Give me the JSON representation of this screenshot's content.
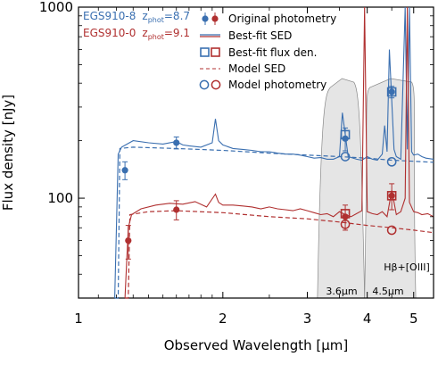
{
  "chart_data": {
    "type": "line",
    "xlabel": "Observed Wavelength [μm]",
    "ylabel": "Flux density [nJy]",
    "xscale": "log",
    "yscale": "log",
    "xlim": [
      1.0,
      5.5
    ],
    "ylim": [
      30,
      1000
    ],
    "xticks": [
      {
        "value": 1,
        "label": "1"
      },
      {
        "value": 2,
        "label": "2"
      },
      {
        "value": 3,
        "label": "3"
      },
      {
        "value": 4,
        "label": "4"
      },
      {
        "value": 5,
        "label": "5"
      }
    ],
    "yticks": [
      {
        "value": 100,
        "label": "100"
      },
      {
        "value": 1000,
        "label": "1000"
      }
    ],
    "galaxies": [
      {
        "name": "EGS910-8",
        "z_prefix": "z",
        "z_sub": "phot",
        "z_value": "=8.7",
        "color": "#3a6fb0"
      },
      {
        "name": "EGS910-0",
        "z_prefix": "z",
        "z_sub": "phot",
        "z_value": "=9.1",
        "color": "#b03030"
      }
    ],
    "legend": {
      "position": "upper-right",
      "entries": [
        {
          "key": "original",
          "label": "Original photometry"
        },
        {
          "key": "sed",
          "label": "Best-fit SED"
        },
        {
          "key": "flux",
          "label": "Best-fit flux den."
        },
        {
          "key": "model_sed",
          "label": "Model SED"
        },
        {
          "key": "model_phot",
          "label": "Model photometry"
        }
      ]
    },
    "band_labels": [
      {
        "label": "3.6μm",
        "x": 3.6
      },
      {
        "label": "4.5μm",
        "x": 4.5
      },
      {
        "label": "Hβ+[OIII]",
        "x": 4.9
      }
    ],
    "original_photometry": [
      {
        "galaxy": 0,
        "x": 1.25,
        "y": 140,
        "err": 15
      },
      {
        "galaxy": 0,
        "x": 1.6,
        "y": 195,
        "err": 14
      },
      {
        "galaxy": 0,
        "x": 3.6,
        "y": 205,
        "err": 28
      },
      {
        "galaxy": 0,
        "x": 4.5,
        "y": 360,
        "err": 25
      },
      {
        "galaxy": 1,
        "x": 1.27,
        "y": 60,
        "err": 12
      },
      {
        "galaxy": 1,
        "x": 1.6,
        "y": 87,
        "err": 10
      },
      {
        "galaxy": 1,
        "x": 3.6,
        "y": 80,
        "err": 12
      },
      {
        "galaxy": 1,
        "x": 4.5,
        "y": 103,
        "err": 16
      }
    ],
    "bestfit_flux": [
      {
        "galaxy": 0,
        "x": 3.6,
        "y": 215
      },
      {
        "galaxy": 0,
        "x": 4.5,
        "y": 360
      },
      {
        "galaxy": 1,
        "x": 3.6,
        "y": 83
      },
      {
        "galaxy": 1,
        "x": 4.5,
        "y": 103
      }
    ],
    "model_photometry": [
      {
        "galaxy": 0,
        "x": 3.6,
        "y": 165
      },
      {
        "galaxy": 0,
        "x": 4.5,
        "y": 155
      },
      {
        "galaxy": 1,
        "x": 3.6,
        "y": 73
      },
      {
        "galaxy": 1,
        "x": 4.5,
        "y": 68
      }
    ],
    "series": [
      {
        "galaxy": 0,
        "kind": "bestfit_sed",
        "x": [
          1.19,
          1.21,
          1.23,
          1.3,
          1.4,
          1.5,
          1.6,
          1.65,
          1.7,
          1.8,
          1.9,
          1.93,
          1.96,
          2.0,
          2.1,
          2.2,
          2.3,
          2.4,
          2.5,
          2.6,
          2.7,
          2.8,
          2.9,
          3.0,
          3.1,
          3.2,
          3.3,
          3.4,
          3.5,
          3.55,
          3.65,
          3.8,
          3.9,
          4.0,
          4.1,
          4.2,
          4.3,
          4.35,
          4.4,
          4.45,
          4.55,
          4.6,
          4.7,
          4.8,
          4.85,
          4.9,
          4.95,
          5.0,
          5.1,
          5.2,
          5.3,
          5.5
        ],
        "y": [
          30,
          170,
          185,
          200,
          195,
          192,
          198,
          190,
          188,
          185,
          195,
          260,
          200,
          190,
          182,
          180,
          178,
          175,
          175,
          172,
          170,
          170,
          168,
          165,
          162,
          163,
          160,
          160,
          165,
          280,
          165,
          160,
          158,
          165,
          160,
          158,
          170,
          240,
          175,
          600,
          180,
          165,
          160,
          1000,
          180,
          1000,
          175,
          168,
          170,
          165,
          162,
          160
        ]
      },
      {
        "galaxy": 0,
        "kind": "model_sed",
        "x": [
          1.19,
          1.21,
          1.22,
          1.3,
          1.6,
          2.0,
          2.5,
          3.0,
          3.5,
          4.0,
          4.5,
          5.0,
          5.5
        ],
        "y": [
          30,
          30,
          182,
          185,
          182,
          178,
          172,
          168,
          165,
          162,
          158,
          156,
          154
        ]
      },
      {
        "galaxy": 1,
        "kind": "bestfit_sed",
        "x": [
          1.25,
          1.27,
          1.29,
          1.35,
          1.45,
          1.55,
          1.65,
          1.75,
          1.85,
          1.93,
          1.96,
          2.0,
          2.1,
          2.2,
          2.3,
          2.4,
          2.5,
          2.6,
          2.7,
          2.8,
          2.9,
          3.0,
          3.1,
          3.2,
          3.3,
          3.4,
          3.5,
          3.6,
          3.7,
          3.8,
          3.9,
          3.95,
          4.0,
          4.1,
          4.2,
          4.3,
          4.4,
          4.5,
          4.6,
          4.7,
          4.8,
          4.85,
          4.9,
          5.0,
          5.1,
          5.2,
          5.35,
          5.5
        ],
        "y": [
          30,
          70,
          82,
          88,
          92,
          94,
          93,
          96,
          90,
          105,
          95,
          92,
          92,
          91,
          90,
          88,
          90,
          88,
          87,
          86,
          88,
          86,
          84,
          82,
          83,
          80,
          85,
          82,
          80,
          83,
          86,
          1000,
          85,
          83,
          82,
          85,
          80,
          110,
          82,
          85,
          100,
          1000,
          95,
          85,
          84,
          82,
          83,
          80
        ]
      },
      {
        "galaxy": 1,
        "kind": "model_sed",
        "x": [
          1.25,
          1.27,
          1.28,
          1.4,
          1.6,
          2.0,
          2.5,
          3.0,
          3.5,
          4.0,
          4.5,
          5.0,
          5.5
        ],
        "y": [
          30,
          30,
          82,
          85,
          86,
          84,
          80,
          78,
          75,
          72,
          70,
          68,
          66
        ]
      }
    ]
  }
}
